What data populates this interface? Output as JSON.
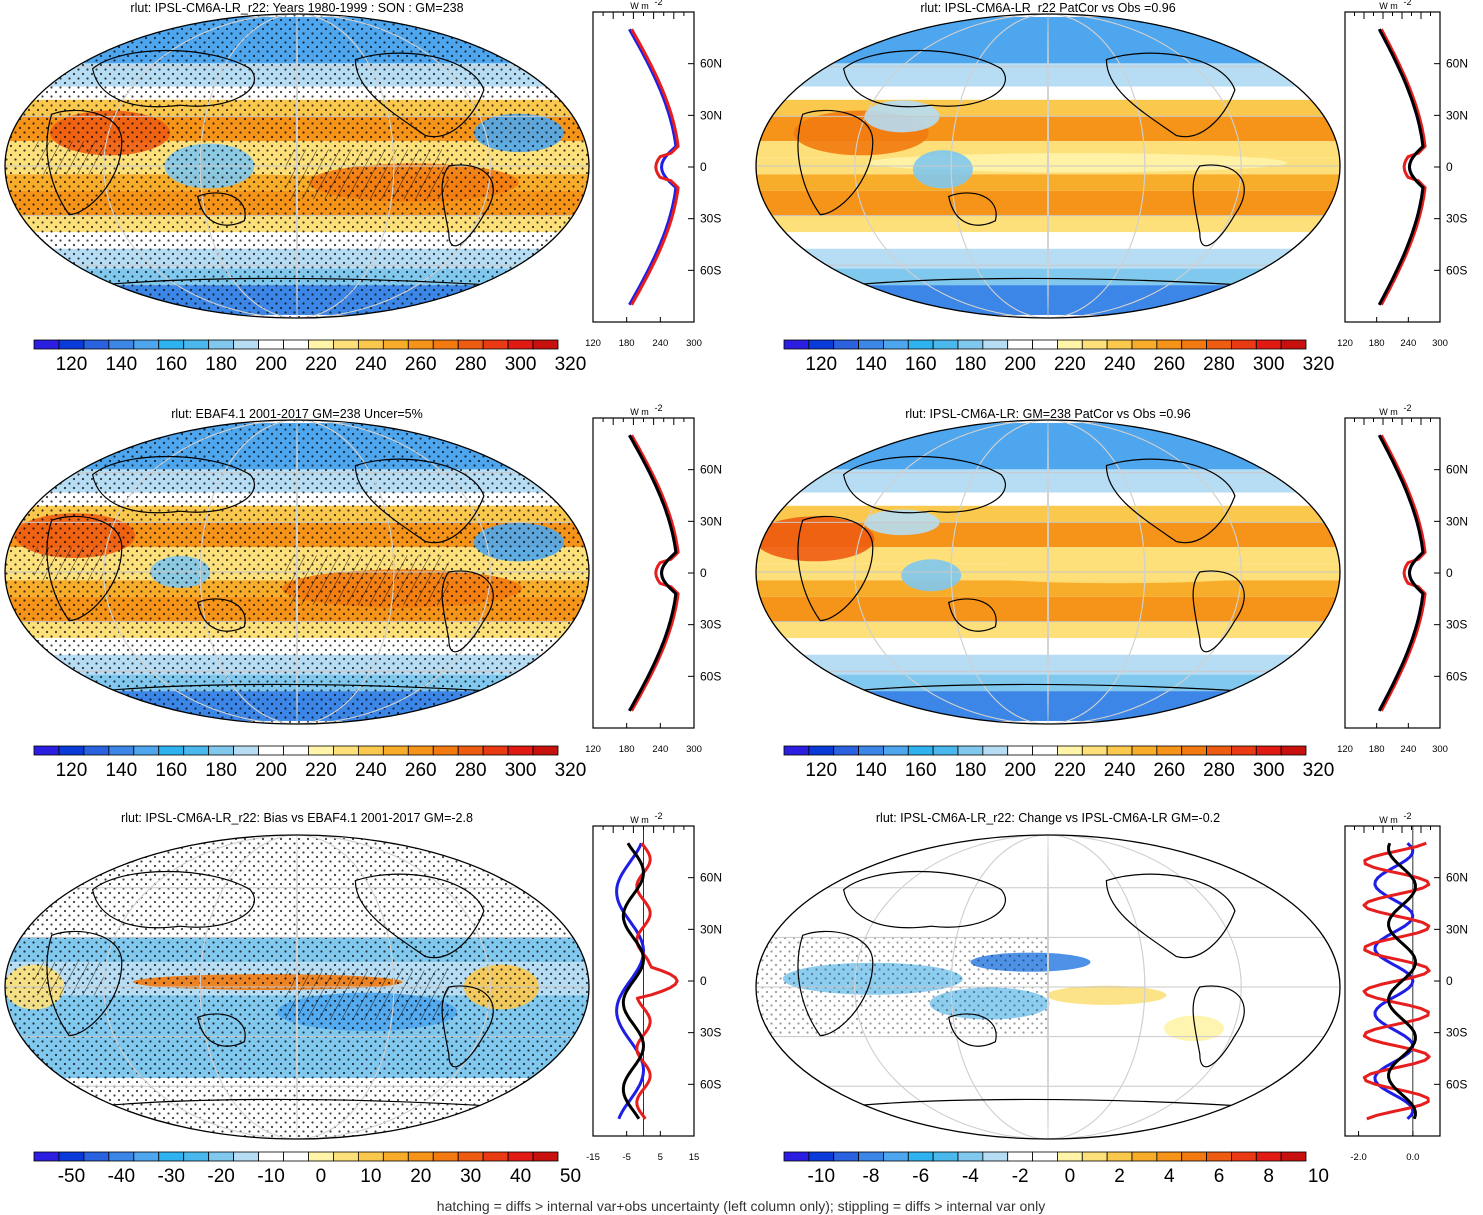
{
  "footer": "hatching = diffs > internal var+obs uncertainty (left column only); stippling = diffs > internal var only",
  "zonal_unit": "W m",
  "zonal_unit_exp": "-2",
  "lat_labels": [
    "60N",
    "30N",
    "0",
    "30S",
    "60S"
  ],
  "colors": {
    "profile_model": "#1e1ee6",
    "profile_obs": "#e61e1e",
    "profile_ensemble": "#000000"
  },
  "chart_data": [
    {
      "type": "heatmap",
      "title": "rlut: IPSL-CM6A-LR_r22: Years 1980-1999 : SON : GM=238",
      "colorbar_labels": [
        "120",
        "140",
        "160",
        "180",
        "200",
        "220",
        "240",
        "260",
        "280",
        "300",
        "320"
      ],
      "colorbar_range": [
        110,
        330
      ],
      "zonal_profile": {
        "xlim": [
          120,
          300
        ],
        "xticks": [
          "120",
          "180",
          "240",
          "300"
        ],
        "series": [
          "blue",
          "red"
        ]
      }
    },
    {
      "type": "heatmap",
      "title": "rlut: IPSL-CM6A-LR_r22 PatCor vs Obs =0.96",
      "colorbar_labels": [
        "120",
        "140",
        "160",
        "180",
        "200",
        "220",
        "240",
        "260",
        "280",
        "300",
        "320"
      ],
      "colorbar_range": [
        110,
        330
      ],
      "zonal_profile": {
        "xlim": [
          120,
          300
        ],
        "xticks": [
          "120",
          "180",
          "240",
          "300"
        ],
        "series": [
          "blue",
          "red",
          "black"
        ]
      }
    },
    {
      "type": "heatmap",
      "title": "rlut: EBAF4.1 2001-2017 GM=238 Uncer=5%",
      "colorbar_labels": [
        "120",
        "140",
        "160",
        "180",
        "200",
        "220",
        "240",
        "260",
        "280",
        "300",
        "320"
      ],
      "colorbar_range": [
        110,
        330
      ],
      "zonal_profile": {
        "xlim": [
          120,
          300
        ],
        "xticks": [
          "120",
          "180",
          "240",
          "300"
        ],
        "series": [
          "blue",
          "red",
          "black"
        ]
      }
    },
    {
      "type": "heatmap",
      "title": "rlut: IPSL-CM6A-LR: GM=238 PatCor vs Obs =0.96",
      "colorbar_labels": [
        "120",
        "140",
        "160",
        "180",
        "200",
        "220",
        "240",
        "260",
        "280",
        "300",
        "320"
      ],
      "colorbar_range": [
        110,
        330
      ],
      "zonal_profile": {
        "xlim": [
          120,
          300
        ],
        "xticks": [
          "120",
          "180",
          "240",
          "300"
        ],
        "series": [
          "blue",
          "red",
          "black"
        ]
      }
    },
    {
      "type": "heatmap",
      "title": "rlut: IPSL-CM6A-LR_r22: Bias vs EBAF4.1 2001-2017  GM=-2.8",
      "colorbar_labels": [
        "-50",
        "-40",
        "-30",
        "-20",
        "-10",
        "0",
        "10",
        "20",
        "30",
        "40",
        "50"
      ],
      "colorbar_range": [
        -55,
        55
      ],
      "zonal_profile": {
        "xlim": [
          -15,
          15
        ],
        "xticks": [
          "-15",
          "-5",
          "5",
          "15"
        ],
        "series": [
          "blue",
          "red",
          "black"
        ]
      }
    },
    {
      "type": "heatmap",
      "title": "rlut: IPSL-CM6A-LR_r22: Change vs IPSL-CM6A-LR GM=-0.2",
      "colorbar_labels": [
        "-10",
        "-8",
        "-6",
        "-4",
        "-2",
        "0",
        "2",
        "4",
        "6",
        "8",
        "10"
      ],
      "colorbar_range": [
        -11,
        11
      ],
      "zonal_profile": {
        "xlim": [
          -2.5,
          1.0
        ],
        "xticks": [
          "-2.0",
          "0.0"
        ],
        "series": [
          "blue",
          "red",
          "black"
        ]
      }
    }
  ]
}
